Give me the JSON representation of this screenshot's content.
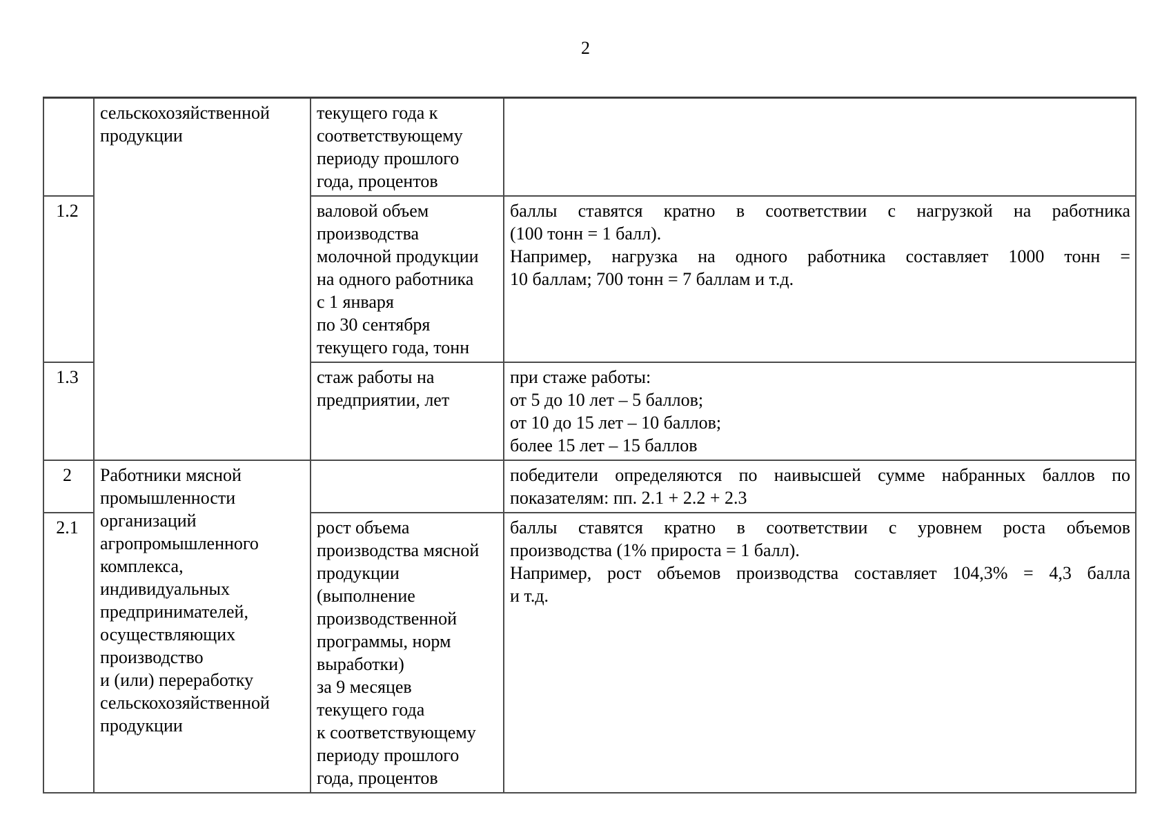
{
  "page": {
    "number": "2"
  },
  "colors": {
    "background": "#ffffff",
    "text": "#000000",
    "table_border": "#4a4a4a"
  },
  "table": {
    "rows": {
      "cont": {
        "num": "",
        "category": "сельскохозяйственной\nпродукции",
        "indicator": "текущего года к\nсоответствующему\nпериоду прошлого\nгода, процентов",
        "criteria": []
      },
      "r12": {
        "num": "1.2",
        "indicator": "валовой объем\nпроизводства\nмолочной продукции\nна одного работника\nс 1 января\nпо 30 сентября\nтекущего года, тонн",
        "criteria": [
          [
            "баллы ставятся кратно в соответствии с нагрузкой на работника",
            "(100 тонн = 1 балл)."
          ],
          [
            "Например, нагрузка на одного работника составляет 1000 тонн =",
            "10 баллам; 700 тонн = 7 баллам и т.д."
          ]
        ]
      },
      "r13": {
        "num": "1.3",
        "indicator": "стаж работы на\nпредприятии, лет",
        "criteria": [
          [
            "при стаже работы:"
          ],
          [
            "от 5 до 10 лет – 5 баллов;"
          ],
          [
            "от 10 до 15 лет – 10 баллов;"
          ],
          [
            "более 15 лет – 15 баллов"
          ]
        ]
      },
      "r2": {
        "num": "2",
        "category": "Работники мясной\nпромышленности\nорганизаций\nагропромышленного\nкомплекса,\nиндивидуальных\nпредпринимателей,\nосуществляющих\nпроизводство\nи (или) переработку\nсельскохозяйственной\nпродукции",
        "indicator": "",
        "criteria": [
          [
            "победители определяются по наивысшей сумме набранных баллов по",
            "показателям: пп. 2.1 + 2.2 + 2.3"
          ]
        ]
      },
      "r21": {
        "num": "2.1",
        "indicator": "рост объема\nпроизводства мясной\nпродукции\n(выполнение\nпроизводственной\nпрограммы, норм\nвыработки)\nза 9 месяцев\nтекущего года\nк соответствующему\nпериоду прошлого\nгода, процентов",
        "criteria": [
          [
            "баллы ставятся кратно в соответствии с уровнем роста объемов",
            "производства (1% прироста = 1 балл)."
          ],
          [
            "Например, рост объемов производства составляет 104,3% = 4,3 балла",
            "и т.д."
          ]
        ]
      }
    }
  }
}
